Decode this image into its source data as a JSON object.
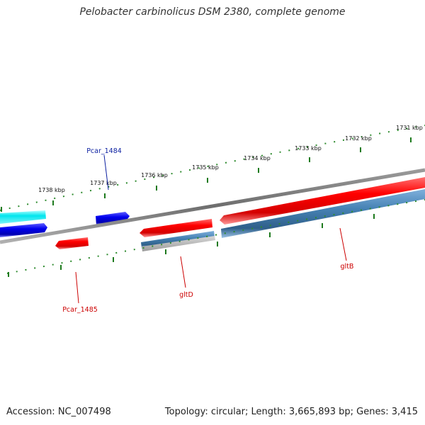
{
  "title": "Pelobacter carbinolicus DSM 2380, complete genome",
  "footer": {
    "accession": "Accession: NC_007498",
    "summary": "Topology: circular; Length: 3,665,893 bp; Genes: 3,415"
  },
  "scale": {
    "ticks": [
      "1731 kbp",
      "1732 kbp",
      "1733 kbp",
      "1734 kbp",
      "1735 kbp",
      "1736 kbp",
      "1737 kbp",
      "1738 kbp"
    ]
  },
  "genes": [
    {
      "name": "Pcar_1484",
      "color": "#0a1ea0"
    },
    {
      "name": "Pcar_1485",
      "color": "#cc0000"
    },
    {
      "name": "gltD",
      "color": "#cc0000"
    },
    {
      "name": "gltB",
      "color": "#cc0000"
    }
  ],
  "colors": {
    "backbone": "#808080",
    "forward_gene": "#ff0000",
    "reverse_gene": "#0000ee",
    "cds_track": "#4682b4",
    "cyan_track": "#00e5ee",
    "tick_green": "#2e8b2e"
  }
}
